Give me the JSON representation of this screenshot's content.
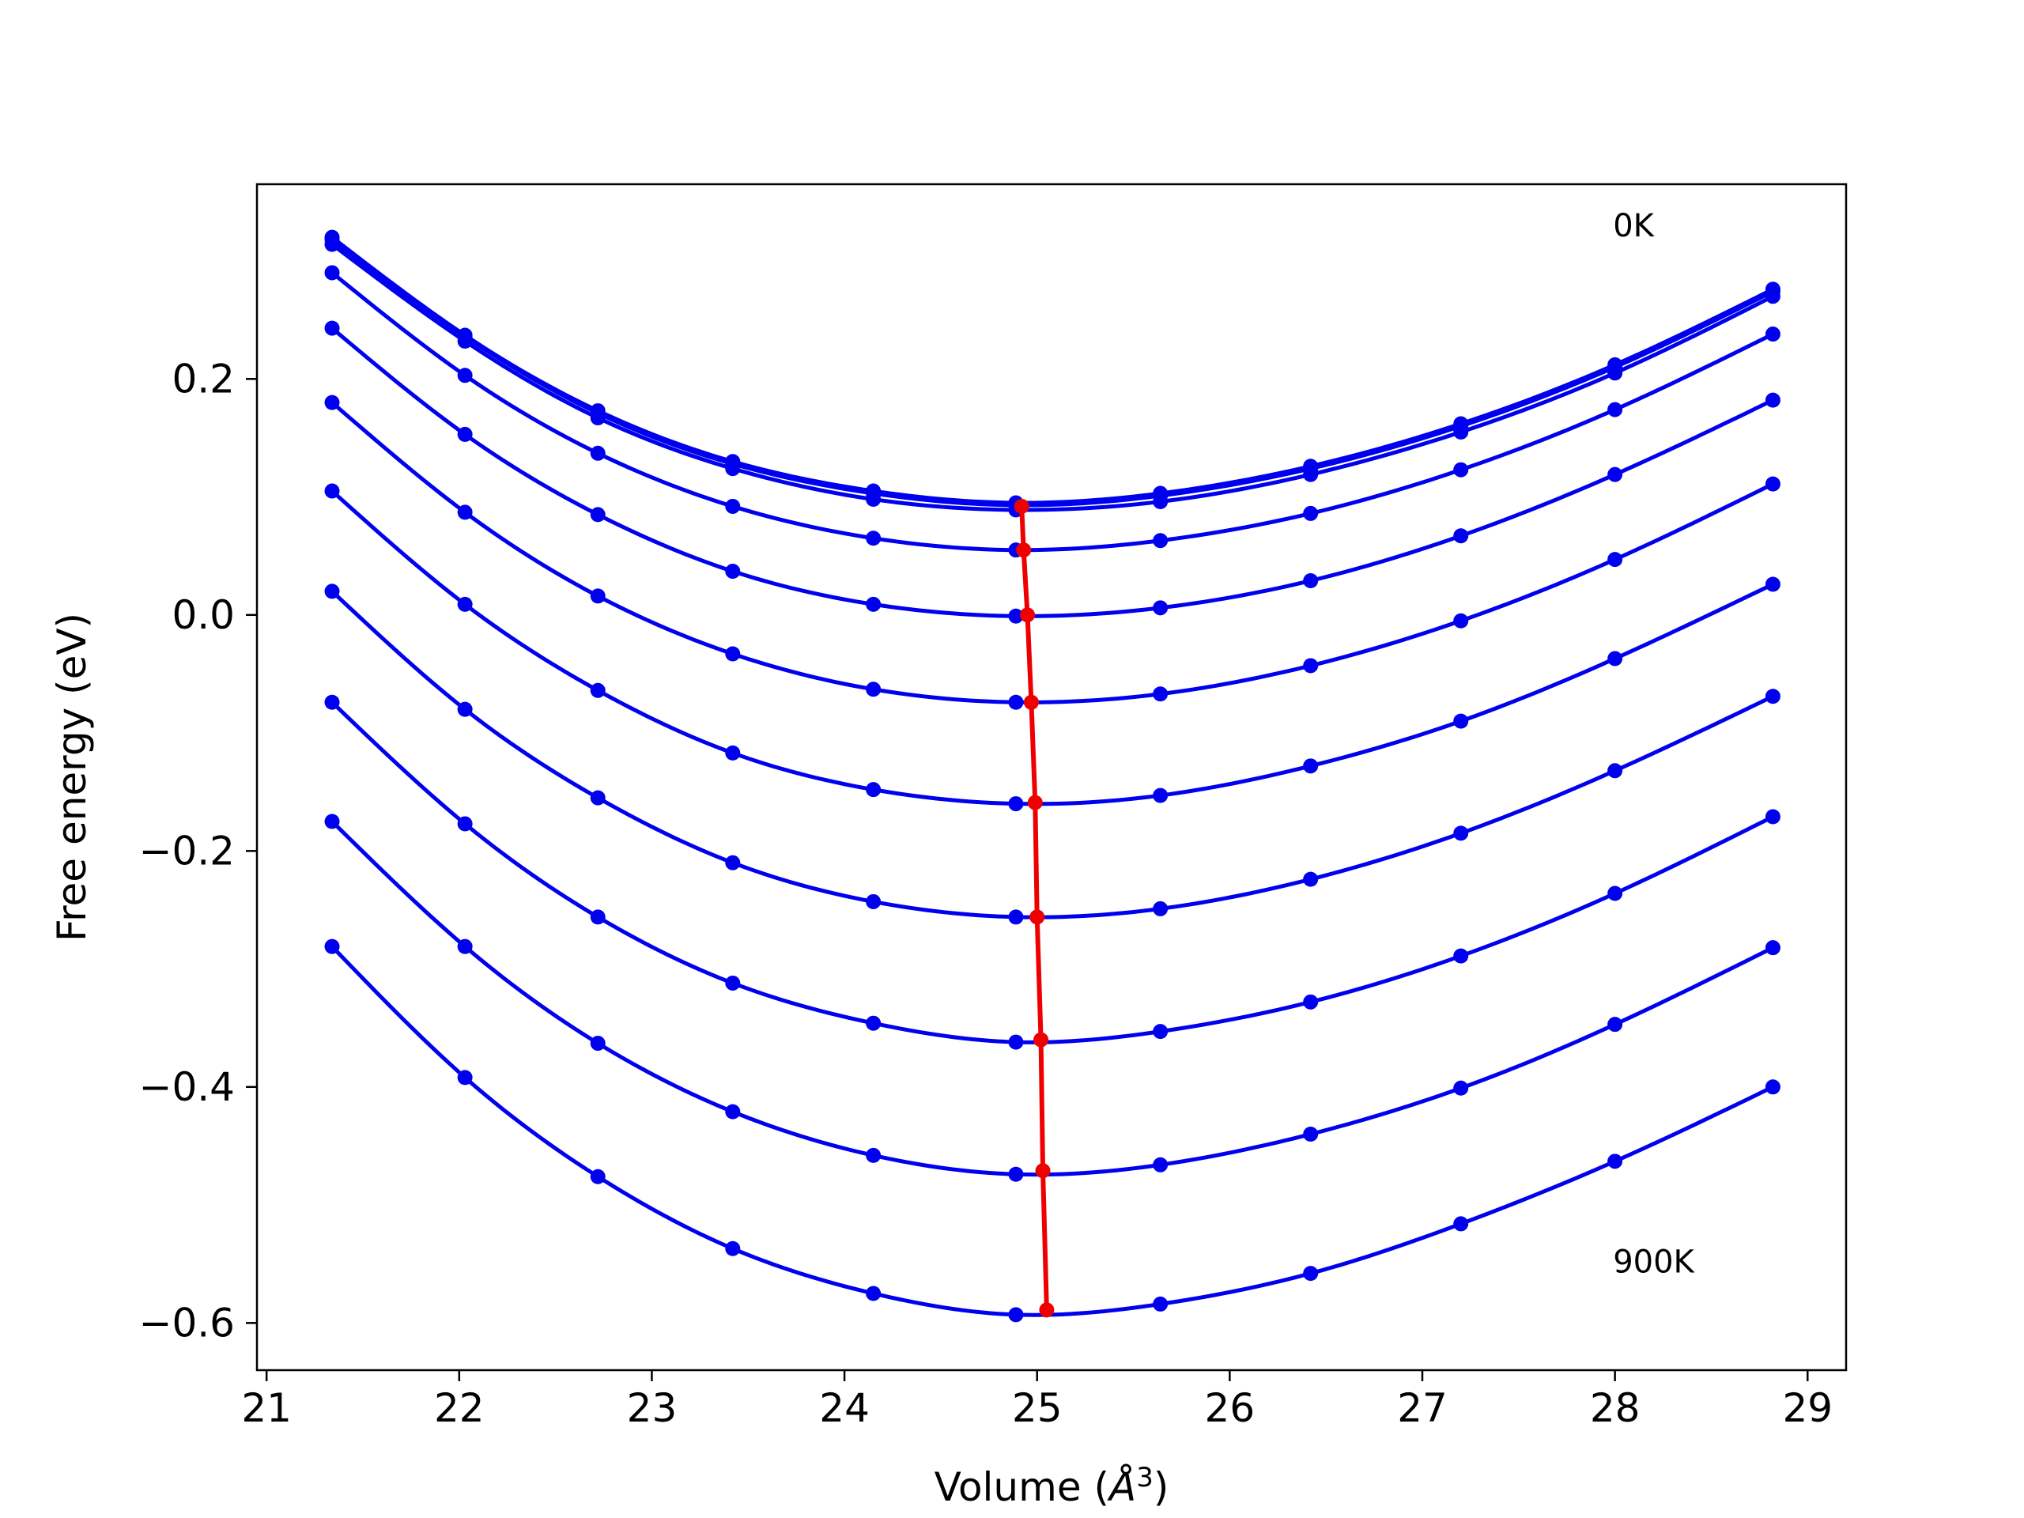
{
  "chart_data": {
    "type": "line",
    "xlabel_prefix": "Volume (",
    "xlabel_unit_base": "Å",
    "xlabel_unit_exp": "3",
    "xlabel_suffix": ")",
    "ylabel": "Free energy (eV)",
    "xlim": [
      20.95,
      29.2
    ],
    "ylim": [
      -0.64,
      0.365
    ],
    "xticks": [
      21,
      22,
      23,
      24,
      25,
      26,
      27,
      28,
      29
    ],
    "xtick_labels": [
      "21",
      "22",
      "23",
      "24",
      "25",
      "26",
      "27",
      "28",
      "29"
    ],
    "yticks": [
      0.2,
      0.0,
      -0.2,
      -0.4,
      -0.6
    ],
    "ytick_labels": [
      "0.2",
      "0.0",
      "−0.2",
      "−0.4",
      "−0.6"
    ],
    "annotations": [
      {
        "text": "0K",
        "x": 27.99,
        "y": 0.33
      },
      {
        "text": "900K",
        "x": 27.99,
        "y": -0.548
      }
    ],
    "x": [
      21.34,
      22.03,
      22.72,
      23.42,
      24.15,
      24.89,
      25.64,
      26.42,
      27.2,
      28.0,
      28.82
    ],
    "series": [
      {
        "color": "#0000ee",
        "values": [
          0.32,
          0.237,
          0.173,
          0.13,
          0.105,
          0.095,
          0.103,
          0.126,
          0.162,
          0.212,
          0.276
        ]
      },
      {
        "color": "#0000ee",
        "values": [
          0.318,
          0.236,
          0.171,
          0.128,
          0.103,
          0.093,
          0.101,
          0.124,
          0.16,
          0.21,
          0.274
        ]
      },
      {
        "color": "#0000ee",
        "values": [
          0.314,
          0.232,
          0.167,
          0.124,
          0.098,
          0.089,
          0.096,
          0.119,
          0.155,
          0.205,
          0.27
        ]
      },
      {
        "color": "#0000ee",
        "values": [
          0.29,
          0.203,
          0.137,
          0.092,
          0.065,
          0.055,
          0.063,
          0.086,
          0.123,
          0.174,
          0.238
        ]
      },
      {
        "color": "#0000ee",
        "values": [
          0.243,
          0.153,
          0.085,
          0.037,
          0.009,
          -0.001,
          0.006,
          0.029,
          0.067,
          0.119,
          0.182
        ]
      },
      {
        "color": "#0000ee",
        "values": [
          0.18,
          0.087,
          0.016,
          -0.033,
          -0.063,
          -0.074,
          -0.067,
          -0.043,
          -0.005,
          0.047,
          0.111
        ]
      },
      {
        "color": "#0000ee",
        "values": [
          0.105,
          0.009,
          -0.064,
          -0.117,
          -0.148,
          -0.16,
          -0.153,
          -0.128,
          -0.09,
          -0.037,
          0.026
        ]
      },
      {
        "color": "#0000ee",
        "values": [
          0.02,
          -0.08,
          -0.155,
          -0.21,
          -0.243,
          -0.256,
          -0.249,
          -0.224,
          -0.185,
          -0.132,
          -0.069
        ]
      },
      {
        "color": "#0000ee",
        "values": [
          -0.074,
          -0.177,
          -0.256,
          -0.312,
          -0.346,
          -0.362,
          -0.353,
          -0.328,
          -0.289,
          -0.236,
          -0.171
        ]
      },
      {
        "color": "#0000ee",
        "values": [
          -0.175,
          -0.281,
          -0.363,
          -0.421,
          -0.458,
          -0.474,
          -0.466,
          -0.44,
          -0.401,
          -0.347,
          -0.282
        ]
      },
      {
        "color": "#0000ee",
        "values": [
          -0.281,
          -0.392,
          -0.476,
          -0.537,
          -0.575,
          -0.593,
          -0.584,
          -0.558,
          -0.516,
          -0.463,
          -0.4
        ]
      }
    ],
    "minima": {
      "color": "#ee0000",
      "x": [
        24.92,
        24.93,
        24.95,
        24.97,
        24.99,
        25.0,
        25.02,
        25.03,
        25.05
      ],
      "y": [
        0.092,
        0.055,
        0.0,
        -0.074,
        -0.159,
        -0.256,
        -0.36,
        -0.471,
        -0.589
      ]
    }
  }
}
